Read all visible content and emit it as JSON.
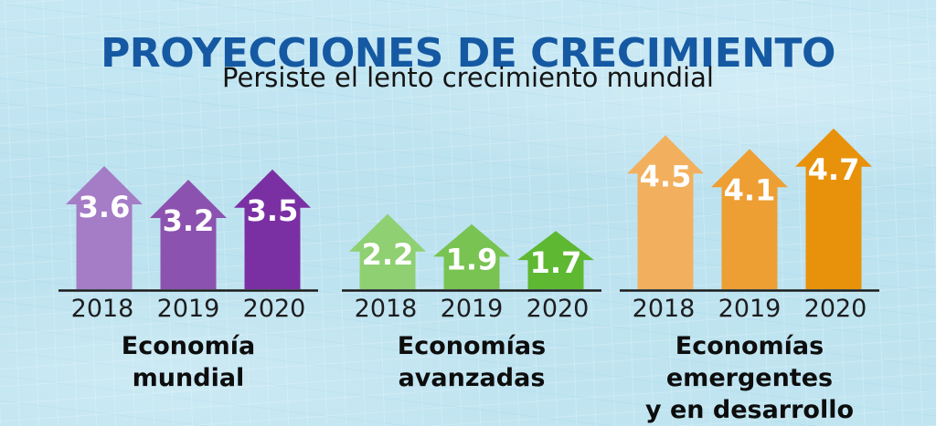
{
  "header": {
    "title": "PROYECCIONES DE CRECIMIENTO",
    "subtitle": "Persiste el lento crecimiento mundial"
  },
  "colors": {
    "background": "#BFE3F0",
    "title_text": "#1659A3",
    "subtitle_text": "#141414",
    "baseline": "#1A1A1A",
    "value_text": "#FFFFFF",
    "year_text": "#1D1D1F",
    "group_label_text": "#0D0D0D"
  },
  "chart_data": {
    "type": "bar",
    "variant": "upward-arrow-pictogram",
    "title": "PROYECCIONES DE CRECIMIENTO",
    "subtitle": "Persiste el lento crecimiento mundial",
    "categories": [
      "2018",
      "2019",
      "2020"
    ],
    "ylim": [
      0,
      5
    ],
    "grid": false,
    "legend": false,
    "series": [
      {
        "name": "Economía mundial",
        "name_lines": [
          "Economía",
          "mundial"
        ],
        "values": [
          3.6,
          3.2,
          3.5
        ],
        "colors": [
          "#A57CC6",
          "#8C52AF",
          "#7A30A3"
        ]
      },
      {
        "name": "Economías avanzadas",
        "name_lines": [
          "Economías",
          "avanzadas"
        ],
        "values": [
          2.2,
          1.9,
          1.7
        ],
        "colors": [
          "#8FD072",
          "#78C352",
          "#5EB832"
        ]
      },
      {
        "name": "Economías emergentes y en desarrollo",
        "name_lines": [
          "Economías emergentes",
          "y en desarrollo"
        ],
        "values": [
          4.5,
          4.1,
          4.7
        ],
        "colors": [
          "#F2B05E",
          "#ED9F33",
          "#E8920B"
        ]
      }
    ]
  }
}
